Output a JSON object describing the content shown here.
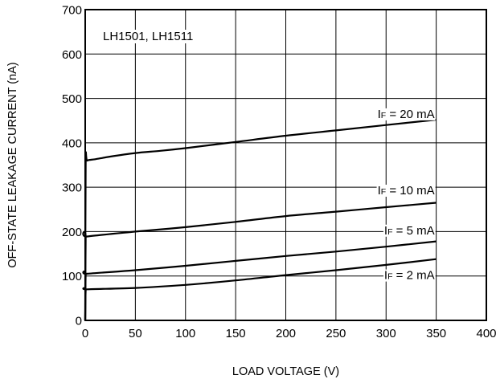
{
  "chart_data": {
    "type": "line",
    "xlabel": "LOAD VOLTAGE (V)",
    "ylabel": "OFF-STATE LEAKAGE CURRENT (nA)",
    "xlim": [
      0,
      400
    ],
    "ylim": [
      0,
      700
    ],
    "x_ticks": [
      "0",
      "50",
      "100",
      "150",
      "200",
      "250",
      "300",
      "350",
      "400"
    ],
    "y_ticks": [
      "0",
      "100",
      "200",
      "300",
      "400",
      "500",
      "600",
      "700"
    ],
    "grid": true,
    "annotation": "LH1501, LH1511",
    "series": [
      {
        "label_main": "I",
        "label_sub": "F",
        "label_rest": " = 20 mA",
        "points": [
          [
            0,
            0
          ],
          [
            0.5,
            350
          ],
          [
            2,
            360
          ],
          [
            10,
            363
          ],
          [
            25,
            369
          ],
          [
            50,
            377
          ],
          [
            75,
            382
          ],
          [
            100,
            388
          ],
          [
            150,
            402
          ],
          [
            200,
            416
          ],
          [
            250,
            428
          ],
          [
            300,
            440
          ],
          [
            350,
            452
          ]
        ],
        "label_at": [
          350,
          465
        ]
      },
      {
        "label_main": "I",
        "label_sub": "F",
        "label_rest": " = 10 mA",
        "points": [
          [
            0,
            0
          ],
          [
            0.5,
            185
          ],
          [
            2,
            189
          ],
          [
            50,
            200
          ],
          [
            100,
            210
          ],
          [
            150,
            222
          ],
          [
            200,
            235
          ],
          [
            250,
            245
          ],
          [
            300,
            255
          ],
          [
            350,
            265
          ]
        ],
        "label_at": [
          350,
          293
        ]
      },
      {
        "label_main": "I",
        "label_sub": "F",
        "label_rest": " = 5 mA",
        "points": [
          [
            0,
            0
          ],
          [
            0.5,
            102
          ],
          [
            2,
            105
          ],
          [
            50,
            113
          ],
          [
            100,
            123
          ],
          [
            150,
            134
          ],
          [
            200,
            145
          ],
          [
            250,
            155
          ],
          [
            300,
            166
          ],
          [
            350,
            178
          ]
        ],
        "label_at": [
          350,
          203
        ]
      },
      {
        "label_main": "I",
        "label_sub": "F",
        "label_rest": " = 2 mA",
        "points": [
          [
            0,
            0
          ],
          [
            0.5,
            67
          ],
          [
            2,
            70
          ],
          [
            50,
            73
          ],
          [
            100,
            80
          ],
          [
            150,
            90
          ],
          [
            200,
            102
          ],
          [
            250,
            113
          ],
          [
            300,
            125
          ],
          [
            350,
            138
          ]
        ],
        "label_at": [
          350,
          102
        ]
      }
    ]
  }
}
